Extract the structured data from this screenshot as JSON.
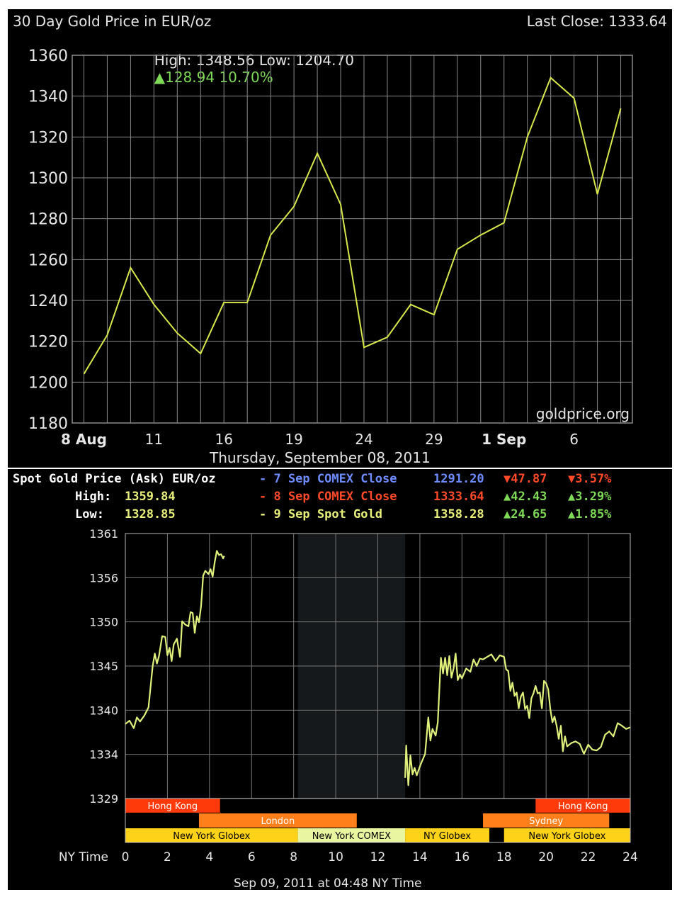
{
  "top": {
    "title": "30 Day Gold Price in EUR/oz",
    "last_close": "Last Close: 1333.64",
    "high_low": "High: 1348.56 Low: 1204.70",
    "change_arrow": "▲",
    "change_value": "128.94 10.70%",
    "watermark": "goldprice.org",
    "date_footer": "Thursday, September 08, 2011",
    "colors": {
      "line": "#d8e84a",
      "up": "#7ed957",
      "grid": "#8a8a8a"
    }
  },
  "bottom": {
    "title": "Spot Gold Price (Ask) EUR/oz",
    "high_label": "High:",
    "high_value": "1359.84",
    "low_label": "Low:",
    "low_value": "1328.85",
    "legend": [
      {
        "dash": "-",
        "label": "7 Sep COMEX Close",
        "price": "1291.20",
        "change": "▼47.87",
        "pct": "▼3.57%",
        "color": "#6f8cff",
        "change_color": "#ff4a2a"
      },
      {
        "dash": "-",
        "label": "8 Sep COMEX Close",
        "price": "1333.64",
        "change": "▲42.43",
        "pct": "▲3.29%",
        "color": "#ff4a2a",
        "change_color": "#7ed957"
      },
      {
        "dash": "-",
        "label": "9 Sep Spot Gold",
        "price": "1358.28",
        "change": "▲24.65",
        "pct": "▲1.85%",
        "color": "#e8f07a",
        "change_color": "#7ed957"
      }
    ],
    "xaxis_title": "NY Time",
    "footer": "Sep 09, 2011 at 04:48 NY Time",
    "sessions": [
      {
        "label": "Hong Kong",
        "start": 0,
        "end": 4.5,
        "row": 0,
        "color": "#ff3a0a",
        "text": "#ffffff"
      },
      {
        "label": "Hong Kong",
        "start": 19.5,
        "end": 24,
        "row": 0,
        "color": "#ff3a0a",
        "text": "#ffffff"
      },
      {
        "label": "London",
        "start": 3.5,
        "end": 11,
        "row": 1,
        "color": "#ff7f1a",
        "text": "#ffffff"
      },
      {
        "label": "Sydney",
        "start": 17,
        "end": 23,
        "row": 1,
        "color": "#ff7f1a",
        "text": "#ffffff"
      },
      {
        "label": "New York Globex",
        "start": 0,
        "end": 8.2,
        "row": 2,
        "color": "#ffd21a",
        "text": "#000000"
      },
      {
        "label": "New York COMEX",
        "start": 8.2,
        "end": 13.3,
        "row": 2,
        "color": "#eaf5a0",
        "text": "#000000"
      },
      {
        "label": "NY Globex",
        "start": 13.3,
        "end": 17.3,
        "row": 2,
        "color": "#ffd21a",
        "text": "#000000"
      },
      {
        "label": "New York Globex",
        "start": 18,
        "end": 24,
        "row": 2,
        "color": "#ffd21a",
        "text": "#000000"
      }
    ]
  },
  "chart_data": [
    {
      "type": "line",
      "title": "30 Day Gold Price in EUR/oz",
      "xlabel": "Thursday, September 08, 2011",
      "ylabel": "",
      "ylim": [
        1180,
        1360
      ],
      "yticks": [
        1180,
        1200,
        1220,
        1240,
        1260,
        1280,
        1300,
        1320,
        1340,
        1360
      ],
      "xtick_labels": [
        {
          "label": "8 Aug",
          "x": 0,
          "bold": true
        },
        {
          "label": "11",
          "x": 3
        },
        {
          "label": "16",
          "x": 6
        },
        {
          "label": "19",
          "x": 9
        },
        {
          "label": "24",
          "x": 12
        },
        {
          "label": "29",
          "x": 15
        },
        {
          "label": "1 Sep",
          "x": 18,
          "bold": true
        },
        {
          "label": "6",
          "x": 21
        }
      ],
      "xlim": [
        -0.5,
        23.5
      ],
      "grid": true,
      "series": [
        {
          "x": [
            0,
            1,
            2,
            3,
            4,
            5,
            6,
            7,
            8,
            9,
            10,
            11,
            12,
            13,
            14,
            15,
            16,
            17,
            18,
            19,
            20,
            21,
            22,
            23
          ],
          "values": [
            1204,
            1223,
            1256,
            1238,
            1224,
            1214,
            1239,
            1239,
            1272,
            1286,
            1312,
            1287,
            1217,
            1222,
            1238,
            1233,
            1265,
            1272,
            1278,
            1320,
            1349,
            1339,
            1292,
            1334
          ]
        }
      ]
    },
    {
      "type": "line",
      "title": "Spot Gold Price (Ask) EUR/oz",
      "xlabel": "NY Time",
      "ylabel": "",
      "xlim": [
        0,
        24
      ],
      "ylim": [
        1329,
        1361
      ],
      "xticks": [
        0,
        2,
        4,
        6,
        8,
        10,
        12,
        14,
        16,
        18,
        20,
        22,
        24
      ],
      "ytick_labels": [
        "1329",
        "1334",
        "1340",
        "1345",
        "1350",
        "1356",
        "1361"
      ],
      "grid": true,
      "shaded_region": [
        8.2,
        13.3
      ],
      "series": [
        {
          "name": "9 Sep Spot Gold",
          "x": [
            0,
            0.2,
            0.4,
            0.55,
            0.7,
            0.9,
            1.1,
            1.3,
            1.4,
            1.5,
            1.6,
            1.75,
            1.9,
            2.0,
            2.1,
            2.2,
            2.3,
            2.45,
            2.6,
            2.7,
            2.85,
            3.0,
            3.1,
            3.2,
            3.3,
            3.4,
            3.5,
            3.6,
            3.7,
            3.8,
            3.95,
            4.05,
            4.15,
            4.25,
            4.35,
            4.45,
            4.55,
            4.65,
            4.7
          ],
          "values": [
            1338,
            1338.4,
            1337.5,
            1338.8,
            1338.3,
            1339,
            1340,
            1345,
            1346.5,
            1345.3,
            1346.2,
            1348.6,
            1348.5,
            1346.3,
            1347.2,
            1345.6,
            1347.6,
            1348.3,
            1346.1,
            1350.4,
            1350,
            1349.8,
            1351.5,
            1351.4,
            1349,
            1351,
            1350.3,
            1352.2,
            1355.9,
            1356.5,
            1356.1,
            1356.7,
            1355.8,
            1357.6,
            1358.9,
            1358.4,
            1358.5,
            1358,
            1358.3
          ]
        },
        {
          "name": "8 Sep",
          "x": [
            13.3,
            13.35,
            13.45,
            13.55,
            13.65,
            13.75,
            13.85,
            13.95,
            14.05,
            14.15,
            14.25,
            14.4,
            14.5,
            14.6,
            14.75,
            14.85,
            15.0,
            15.1,
            15.2,
            15.3,
            15.4,
            15.5,
            15.6,
            15.7,
            15.8,
            15.9,
            16.0,
            16.2,
            16.4,
            16.55,
            16.7,
            16.85,
            17.0,
            17.2,
            17.4,
            17.6,
            17.8,
            18.0,
            18.1,
            18.2,
            18.3,
            18.4,
            18.5,
            18.6,
            18.7,
            18.8,
            18.9,
            19.0,
            19.1,
            19.2,
            19.3,
            19.4,
            19.5,
            19.6,
            19.7,
            19.8,
            19.9,
            20.0,
            20.1,
            20.2,
            20.3,
            20.4,
            20.5,
            20.6,
            20.7,
            20.8,
            20.9,
            21.0,
            21.2,
            21.4,
            21.6,
            21.8,
            22.0,
            22.2,
            22.4,
            22.6,
            22.8,
            23.0,
            23.2,
            23.4,
            23.6,
            23.8,
            24.0
          ],
          "values": [
            1331.5,
            1335.4,
            1330.6,
            1334.2,
            1331.9,
            1332.7,
            1331.8,
            1332.5,
            1333.2,
            1333.8,
            1334.4,
            1338.8,
            1336,
            1337.4,
            1336.6,
            1338.2,
            1346,
            1344.1,
            1346,
            1343.9,
            1346.2,
            1343.6,
            1344.7,
            1346.5,
            1343.3,
            1344,
            1343.5,
            1344.7,
            1344.3,
            1345.8,
            1345,
            1345.9,
            1345.8,
            1346.1,
            1346.4,
            1345.6,
            1346.3,
            1346.1,
            1344.6,
            1344.4,
            1342,
            1343,
            1341.4,
            1341.8,
            1339.9,
            1341.3,
            1341.8,
            1339.8,
            1340.2,
            1338.7,
            1341.1,
            1341.7,
            1342.6,
            1341.7,
            1341.8,
            1339.9,
            1343.2,
            1342.9,
            1342.2,
            1339.8,
            1338.2,
            1338.9,
            1337.8,
            1336.2,
            1337.8,
            1334.7,
            1336.5,
            1335.3,
            1335.7,
            1335.9,
            1335.6,
            1334.4,
            1335.5,
            1334.9,
            1334.8,
            1335.2,
            1336.7,
            1337.1,
            1336.5,
            1338.1,
            1337.8,
            1337.4,
            1337.6
          ]
        }
      ]
    }
  ]
}
